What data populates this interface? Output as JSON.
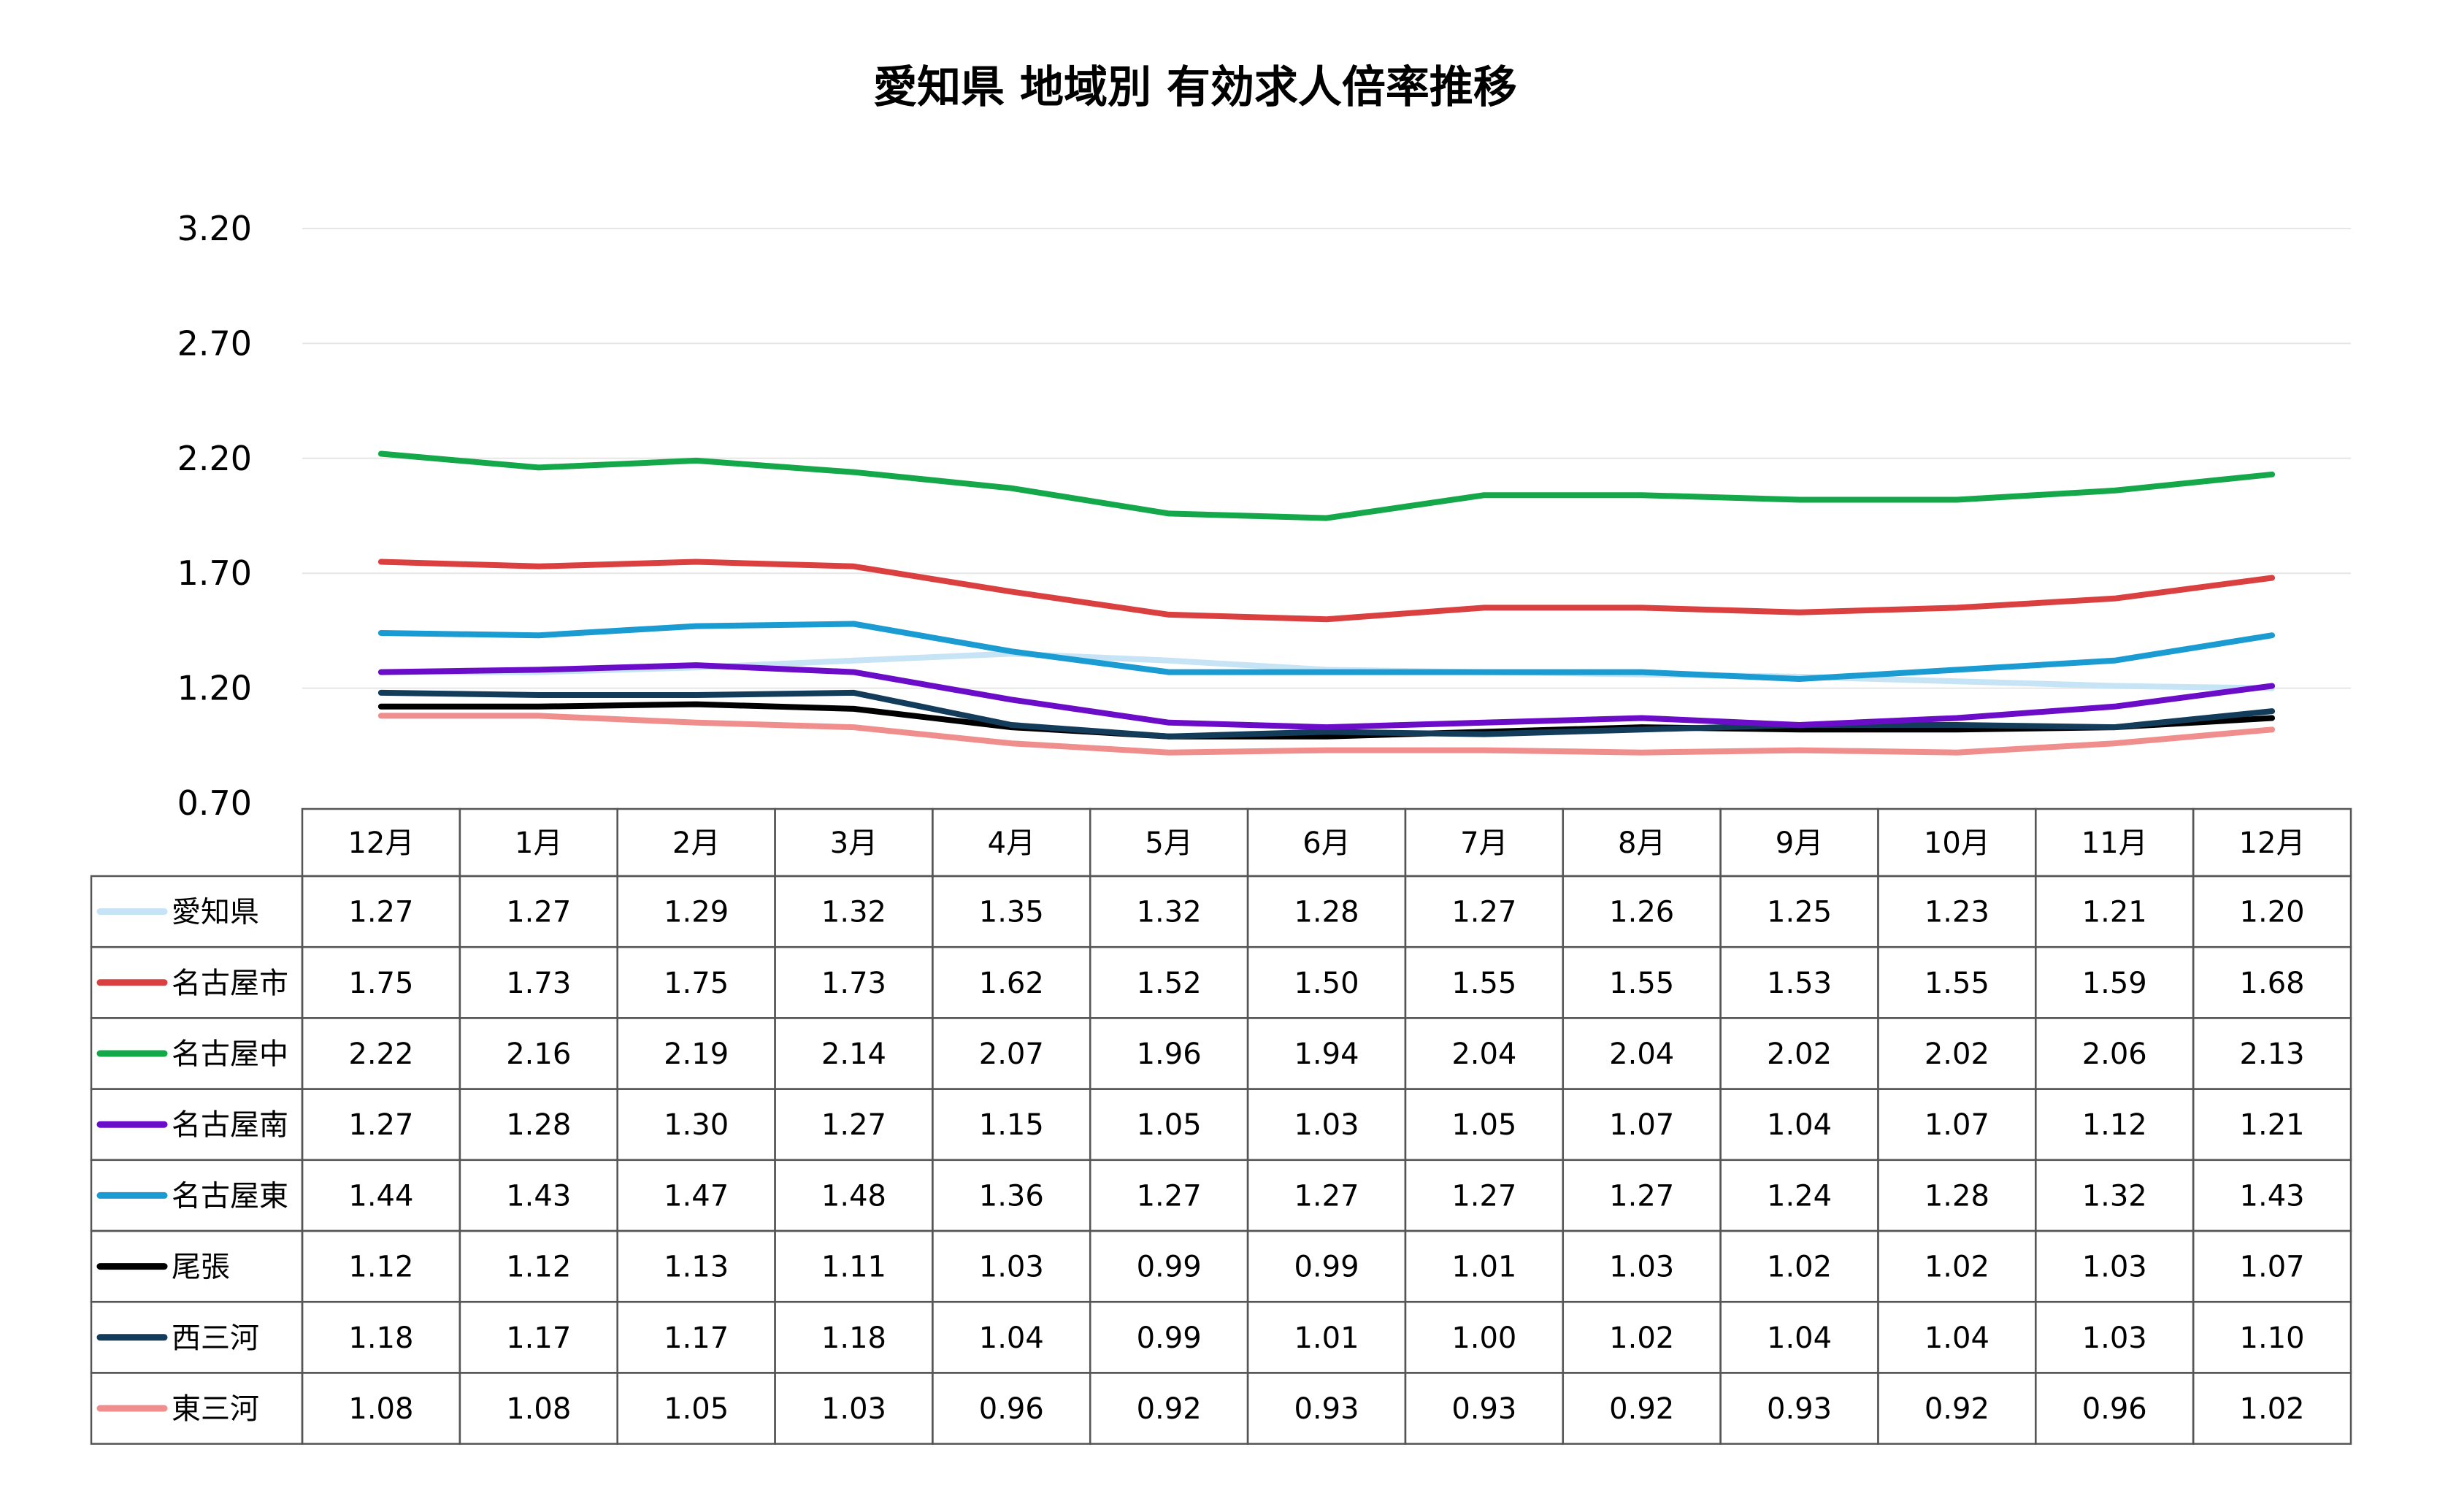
{
  "chart_data": {
    "type": "line",
    "title": "愛知県 地域別 有効求人倍率推移",
    "xlabel": "",
    "ylabel": "",
    "ylim": [
      0.7,
      3.2
    ],
    "yticks": [
      "3.20",
      "2.70",
      "2.20",
      "1.70",
      "1.20",
      "0.70"
    ],
    "grid": true,
    "legend": "data-table",
    "categories": [
      "12月",
      "1月",
      "2月",
      "3月",
      "4月",
      "5月",
      "6月",
      "7月",
      "8月",
      "9月",
      "10月",
      "11月",
      "12月"
    ],
    "series": [
      {
        "name": "愛知県",
        "color": "#c7e4f7",
        "values": [
          1.27,
          1.27,
          1.29,
          1.32,
          1.35,
          1.32,
          1.28,
          1.27,
          1.26,
          1.25,
          1.23,
          1.21,
          1.2
        ]
      },
      {
        "name": "名古屋市",
        "color": "#d9403f",
        "values": [
          1.75,
          1.73,
          1.75,
          1.73,
          1.62,
          1.52,
          1.5,
          1.55,
          1.55,
          1.53,
          1.55,
          1.59,
          1.68
        ]
      },
      {
        "name": "名古屋中",
        "color": "#14a84a",
        "values": [
          2.22,
          2.16,
          2.19,
          2.14,
          2.07,
          1.96,
          1.94,
          2.04,
          2.04,
          2.02,
          2.02,
          2.06,
          2.13
        ]
      },
      {
        "name": "名古屋南",
        "color": "#6a0cc8",
        "values": [
          1.27,
          1.28,
          1.3,
          1.27,
          1.15,
          1.05,
          1.03,
          1.05,
          1.07,
          1.04,
          1.07,
          1.12,
          1.21
        ]
      },
      {
        "name": "名古屋東",
        "color": "#1a9bd1",
        "values": [
          1.44,
          1.43,
          1.47,
          1.48,
          1.36,
          1.27,
          1.27,
          1.27,
          1.27,
          1.24,
          1.28,
          1.32,
          1.43
        ]
      },
      {
        "name": "尾張",
        "color": "#000000",
        "values": [
          1.12,
          1.12,
          1.13,
          1.11,
          1.03,
          0.99,
          0.99,
          1.01,
          1.03,
          1.02,
          1.02,
          1.03,
          1.07
        ]
      },
      {
        "name": "西三河",
        "color": "#123c5a",
        "values": [
          1.18,
          1.17,
          1.17,
          1.18,
          1.04,
          0.99,
          1.01,
          1.0,
          1.02,
          1.04,
          1.04,
          1.03,
          1.1
        ]
      },
      {
        "name": "東三河",
        "color": "#f08d8d",
        "values": [
          1.08,
          1.08,
          1.05,
          1.03,
          0.96,
          0.92,
          0.93,
          0.93,
          0.92,
          0.93,
          0.92,
          0.96,
          1.02
        ]
      }
    ]
  }
}
